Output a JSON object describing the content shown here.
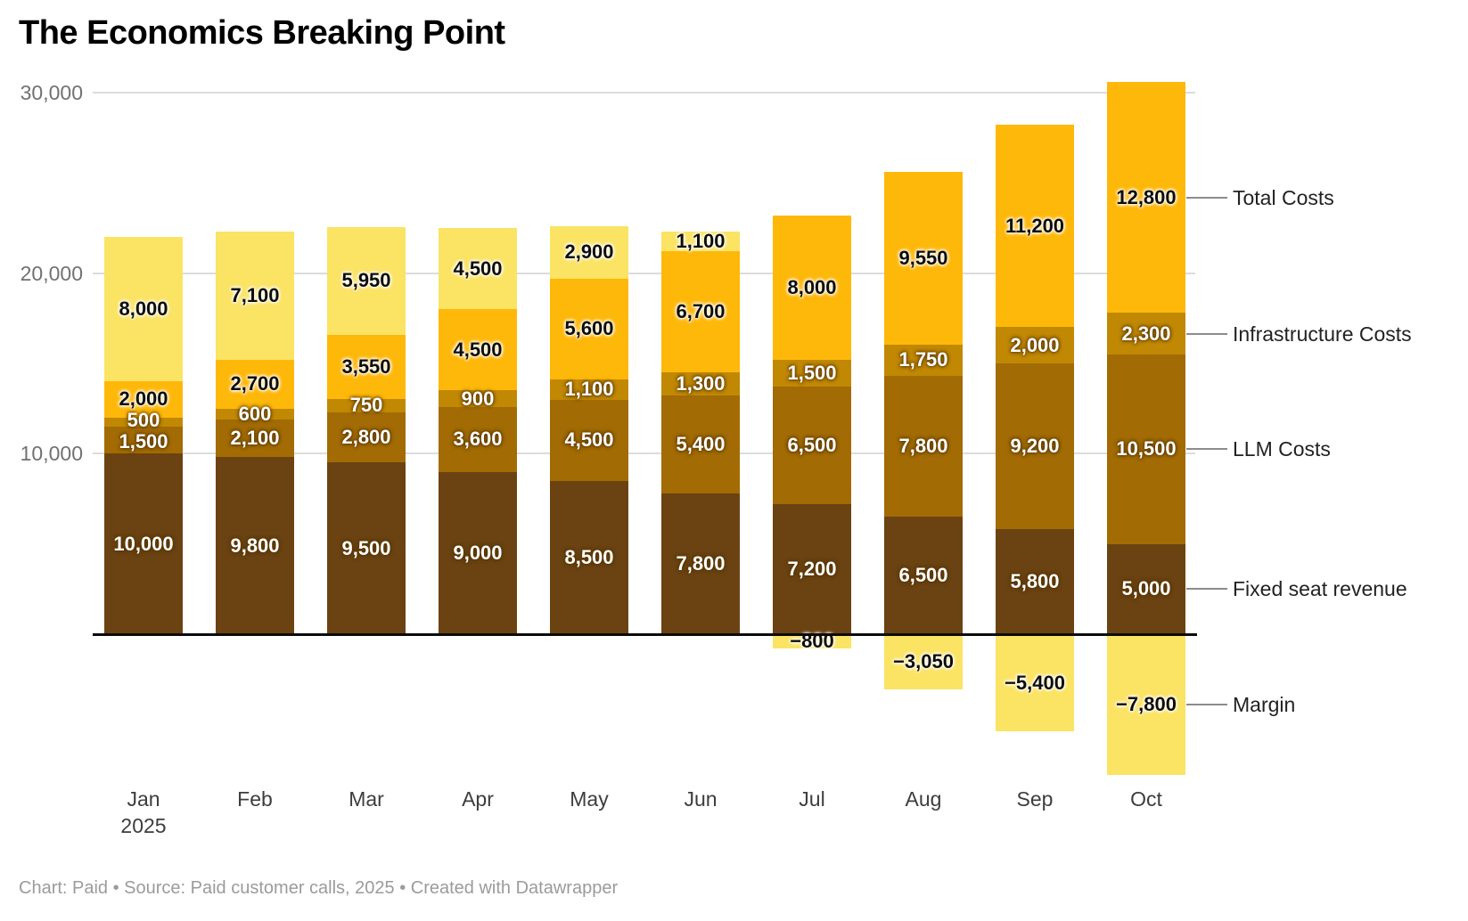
{
  "title": "The Economics Breaking Point",
  "footer": "Chart: Paid • Source: Paid customer calls, 2025 • Created with Datawrapper",
  "y_axis": {
    "ticks": [
      30000,
      20000,
      10000
    ],
    "tick_labels": [
      "30,000",
      "20,000",
      "10,000"
    ]
  },
  "x_axis": {
    "categories": [
      {
        "label": "Jan",
        "sub": "2025"
      },
      {
        "label": "Feb",
        "sub": ""
      },
      {
        "label": "Mar",
        "sub": ""
      },
      {
        "label": "Apr",
        "sub": ""
      },
      {
        "label": "May",
        "sub": ""
      },
      {
        "label": "Jun",
        "sub": ""
      },
      {
        "label": "Jul",
        "sub": ""
      },
      {
        "label": "Aug",
        "sub": ""
      },
      {
        "label": "Sep",
        "sub": ""
      },
      {
        "label": "Oct",
        "sub": ""
      }
    ]
  },
  "chart_data": {
    "type": "bar",
    "stacked": true,
    "grid": true,
    "legend_position": "right",
    "ylim": [
      -8000,
      31000
    ],
    "categories": [
      "Jan 2025",
      "Feb",
      "Mar",
      "Apr",
      "May",
      "Jun",
      "Jul",
      "Aug",
      "Sep",
      "Oct"
    ],
    "series": [
      {
        "name": "Fixed seat revenue",
        "color": "#6B4312",
        "label_style": "light",
        "values": [
          10000,
          9800,
          9500,
          9000,
          8500,
          7800,
          7200,
          6500,
          5800,
          5000
        ]
      },
      {
        "name": "LLM Costs",
        "color": "#A26B03",
        "label_style": "light",
        "values": [
          1500,
          2100,
          2800,
          3600,
          4500,
          5400,
          6500,
          7800,
          9200,
          10500
        ]
      },
      {
        "name": "Infrastructure Costs",
        "color": "#C18804",
        "label_style": "light",
        "values": [
          500,
          600,
          750,
          900,
          1100,
          1300,
          1500,
          1750,
          2000,
          2300
        ]
      },
      {
        "name": "Total Costs",
        "color": "#FEB80A",
        "label_style": "dark",
        "values": [
          2000,
          2700,
          3550,
          4500,
          5600,
          6700,
          8000,
          9550,
          11200,
          12800
        ]
      },
      {
        "name": "Margin",
        "color": "#FBE364",
        "label_style": "dark",
        "values": [
          8000,
          7100,
          5950,
          4500,
          2900,
          1100,
          -800,
          -3050,
          -5400,
          -7800
        ]
      }
    ]
  },
  "legend": {
    "items": [
      "Total Costs",
      "Infrastructure Costs",
      "LLM Costs",
      "Fixed seat revenue",
      "Margin"
    ]
  }
}
